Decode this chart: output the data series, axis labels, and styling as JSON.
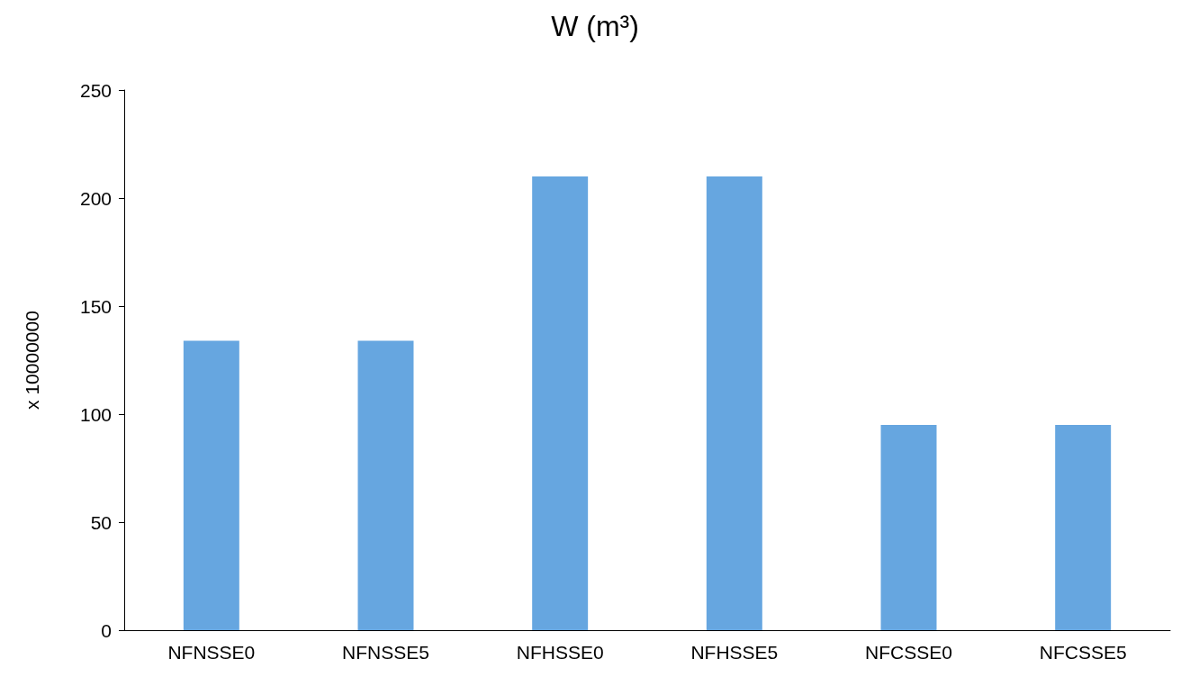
{
  "chart_data": {
    "type": "bar",
    "title": "W (m³)",
    "ylabel": "x 10000000",
    "categories": [
      "NFNSSE0",
      "NFNSSE5",
      "NFHSSE0",
      "NFHSSE5",
      "NFCSSE0",
      "NFCSSE5"
    ],
    "values": [
      134,
      134,
      210,
      210,
      95,
      95
    ],
    "color": "#66a6e0",
    "ylim": [
      0,
      250
    ],
    "yticks": [
      0,
      50,
      100,
      150,
      200,
      250
    ],
    "grid": false
  }
}
